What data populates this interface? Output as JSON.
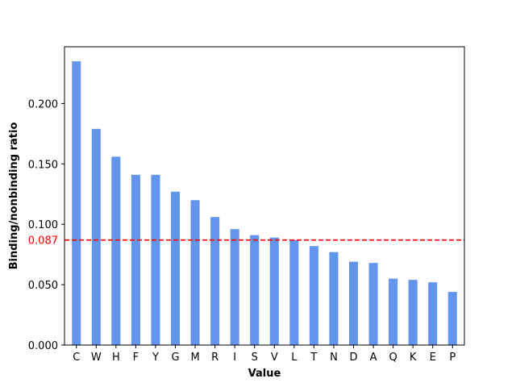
{
  "chart_data": {
    "type": "bar",
    "title": "",
    "xlabel": "Value",
    "ylabel": "Binding/nonbinding ratio",
    "categories": [
      "C",
      "W",
      "H",
      "F",
      "Y",
      "G",
      "M",
      "R",
      "I",
      "S",
      "V",
      "L",
      "T",
      "N",
      "D",
      "A",
      "Q",
      "K",
      "E",
      "P"
    ],
    "values": [
      0.235,
      0.179,
      0.156,
      0.141,
      0.141,
      0.127,
      0.12,
      0.106,
      0.096,
      0.091,
      0.089,
      0.087,
      0.082,
      0.077,
      0.069,
      0.068,
      0.055,
      0.054,
      0.052,
      0.044
    ],
    "ylim": [
      0,
      0.247
    ],
    "yticks": [
      0.0,
      0.05,
      0.1,
      0.15,
      0.2
    ],
    "ytick_labels": [
      "0.000",
      "0.050",
      "0.100",
      "0.150",
      "0.200"
    ],
    "bar_color": "#6495ed",
    "reference_line": {
      "value": 0.087,
      "label": "0.087",
      "color": "#ff0000",
      "style": "dashed"
    },
    "grid": false,
    "legend": "none"
  }
}
